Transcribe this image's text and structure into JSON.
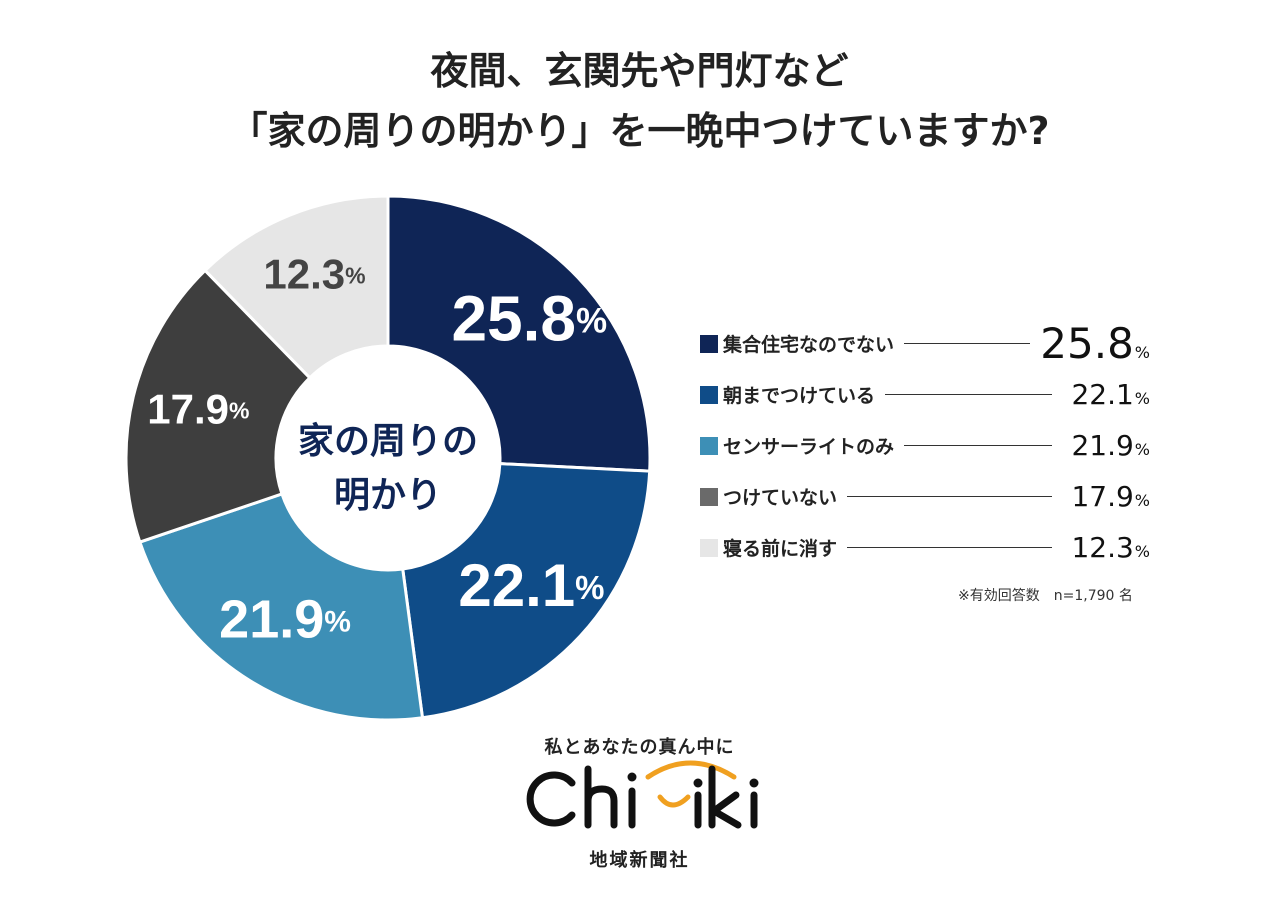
{
  "title": {
    "line1": "夜間、玄関先や門灯など",
    "line2": "「家の周りの明かり」を一晩中つけていますか?"
  },
  "center_label": {
    "line1": "家の周りの",
    "line2": "明かり"
  },
  "legend": [
    {
      "label": "集合住宅なのでない",
      "value": "25.8",
      "unit": "%"
    },
    {
      "label": "朝までつけている",
      "value": "22.1",
      "unit": "%"
    },
    {
      "label": "センサーライトのみ",
      "value": "21.9",
      "unit": "%"
    },
    {
      "label": "つけていない",
      "value": "17.9",
      "unit": "%"
    },
    {
      "label": "寝る前に消す",
      "value": "12.3",
      "unit": "%"
    }
  ],
  "note": "※有効回答数　n=1,790 名",
  "chart_data": {
    "type": "pie",
    "style": "donut",
    "title": "夜間、玄関先や門灯など「家の周りの明かり」を一晩中つけていますか?",
    "center_text": "家の周りの明かり",
    "categories": [
      "集合住宅なのでない",
      "朝までつけている",
      "センサーライトのみ",
      "つけていない",
      "寝る前に消す"
    ],
    "values": [
      25.8,
      22.1,
      21.9,
      17.9,
      12.3
    ],
    "colors": [
      "#0f2556",
      "#0f4c88",
      "#3d8fb6",
      "#3e3e3e",
      "#e6e6e6"
    ],
    "label_colors": [
      "#ffffff",
      "#ffffff",
      "#ffffff",
      "#ffffff",
      "#444444"
    ],
    "value_unit": "%",
    "start": "12 o'clock",
    "direction": "clockwise",
    "sample_size": "n=1,790"
  },
  "footer": {
    "tagline": "私とあなたの真ん中に",
    "logo_text": "Chiiki",
    "company": "地域新聞社"
  },
  "colors": {
    "logo_accent": "#f0a020",
    "text": "#222222"
  }
}
